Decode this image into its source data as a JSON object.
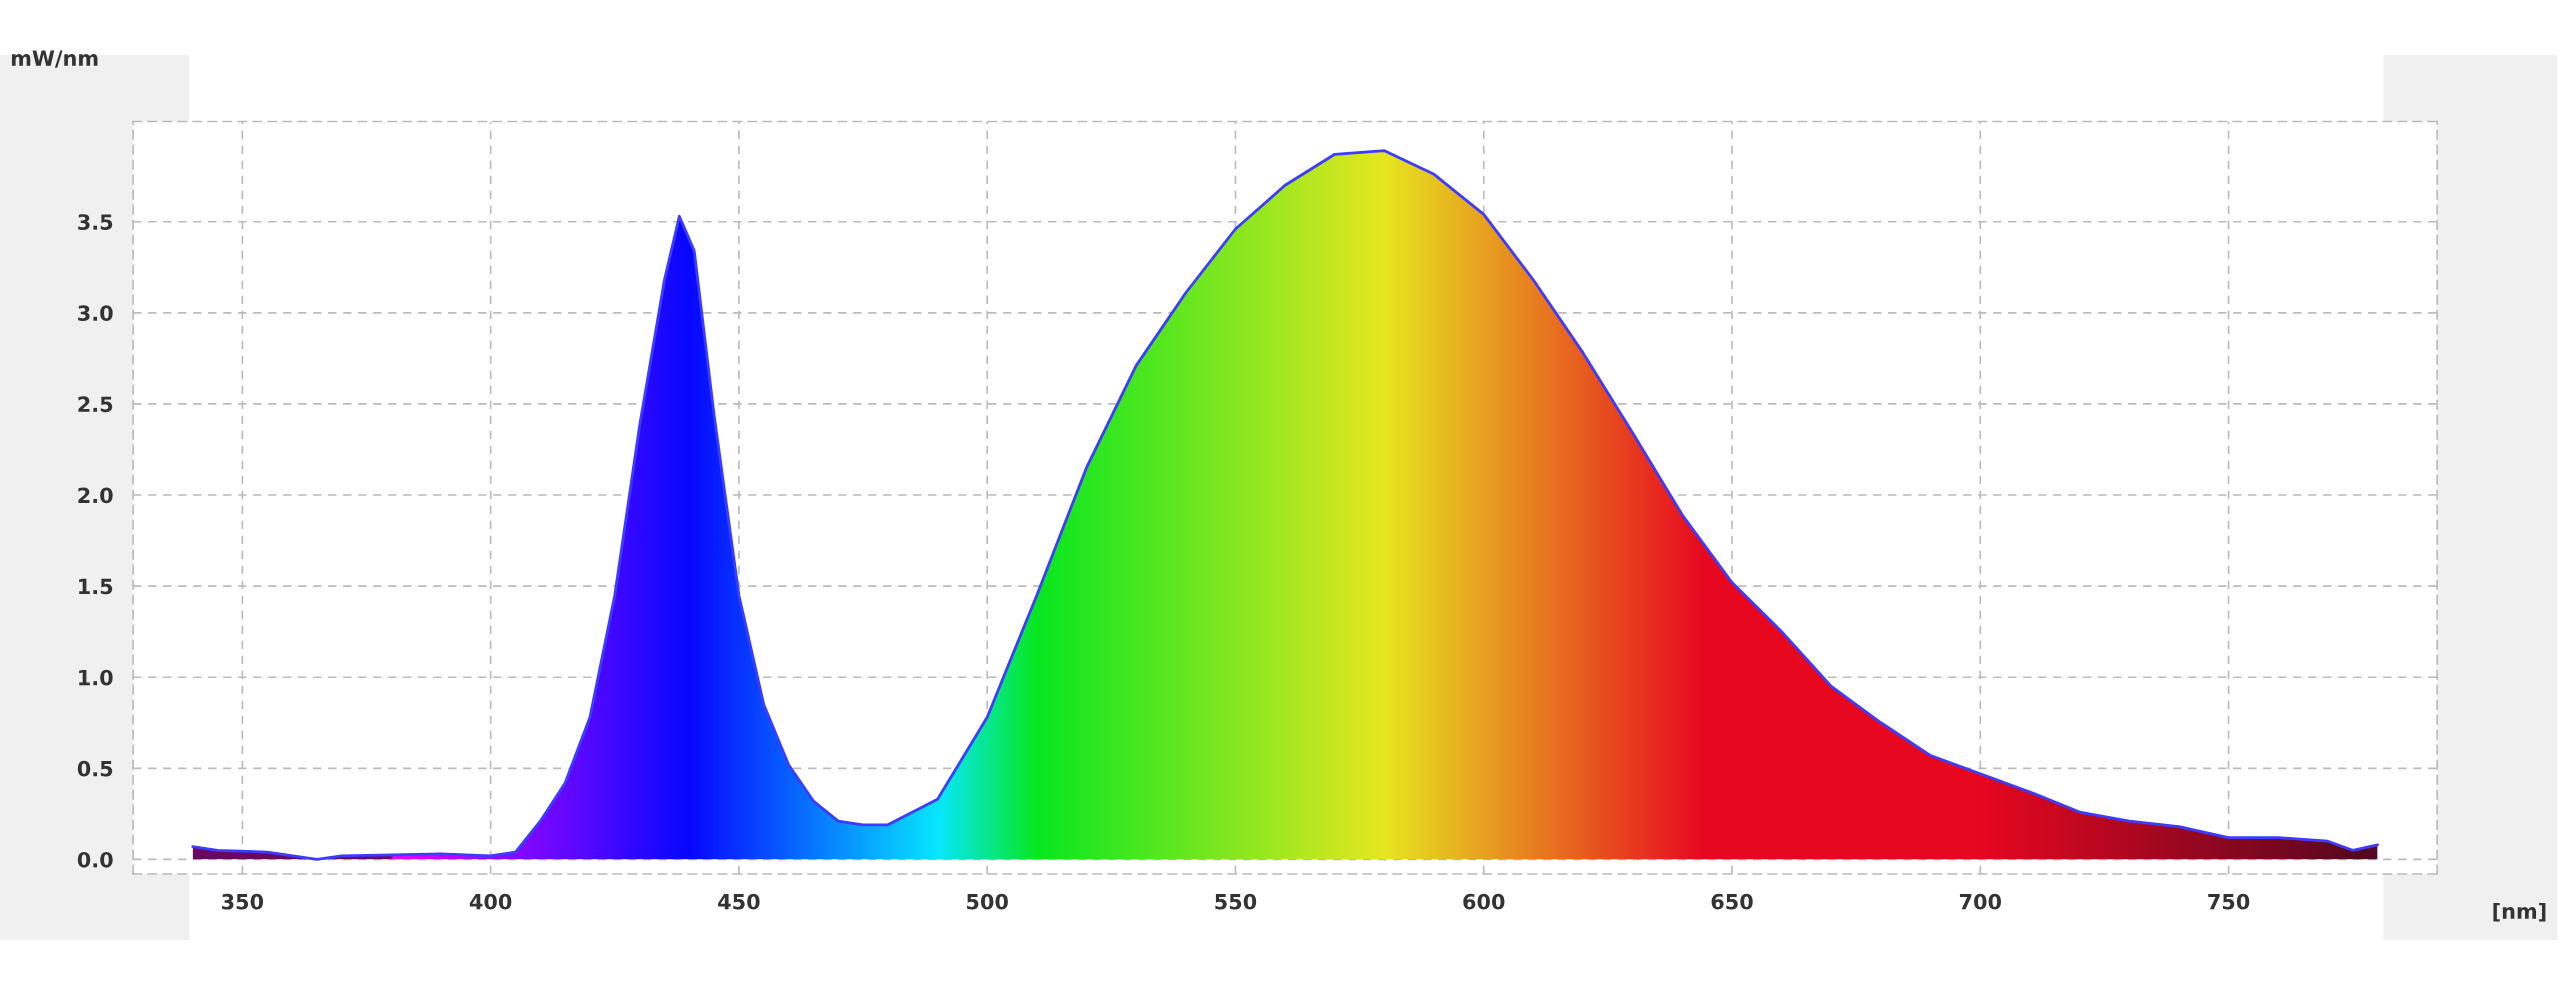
{
  "chart_data": {
    "type": "area",
    "xlabel": "[nm]",
    "ylabel": "mW/nm",
    "xlim": [
      328,
      792
    ],
    "ylim": [
      -0.08,
      4.05
    ],
    "xticks": [
      350,
      400,
      450,
      500,
      550,
      600,
      650,
      700,
      750
    ],
    "yticks": [
      {
        "value": 0,
        "label": "0.0"
      },
      {
        "value": 0.5,
        "label": "0.5"
      },
      {
        "value": 1,
        "label": "1.0"
      },
      {
        "value": 1.5,
        "label": "1.5"
      },
      {
        "value": 2,
        "label": "2.0"
      },
      {
        "value": 2.5,
        "label": "2.5"
      },
      {
        "value": 3,
        "label": "3.0"
      },
      {
        "value": 3.5,
        "label": "3.5"
      }
    ],
    "grid": true,
    "series": [
      {
        "color": "#3c3cff",
        "x": [
          340,
          345,
          355,
          365,
          370,
          390,
          400,
          405,
          410,
          415,
          420,
          425,
          430,
          435,
          438,
          441,
          445,
          450,
          455,
          460,
          465,
          470,
          475,
          480,
          490,
          500,
          510,
          520,
          530,
          540,
          550,
          560,
          570,
          580,
          590,
          600,
          610,
          620,
          630,
          640,
          650,
          660,
          670,
          680,
          690,
          700,
          710,
          720,
          730,
          740,
          750,
          760,
          770,
          775,
          780
        ],
        "values": [
          0.07,
          0.05,
          0.04,
          0.0,
          0.02,
          0.03,
          0.02,
          0.04,
          0.21,
          0.42,
          0.78,
          1.45,
          2.38,
          3.18,
          3.53,
          3.34,
          2.44,
          1.45,
          0.85,
          0.52,
          0.32,
          0.21,
          0.19,
          0.19,
          0.33,
          0.78,
          1.45,
          2.15,
          2.71,
          3.11,
          3.46,
          3.7,
          3.87,
          3.89,
          3.76,
          3.54,
          3.18,
          2.78,
          2.34,
          1.89,
          1.52,
          1.25,
          0.95,
          0.75,
          0.57,
          0.47,
          0.37,
          0.26,
          0.21,
          0.18,
          0.12,
          0.12,
          0.1,
          0.05,
          0.08
        ]
      }
    ]
  }
}
